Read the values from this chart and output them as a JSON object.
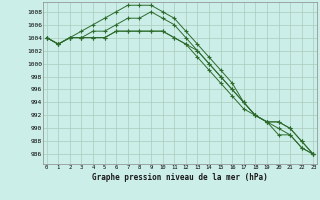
{
  "title": "Graphe pression niveau de la mer (hPa)",
  "bg_color": "#cceee8",
  "grid_color": "#aaccbb",
  "line_color": "#2d6b2d",
  "x_labels": [
    "0",
    "1",
    "2",
    "3",
    "4",
    "5",
    "6",
    "7",
    "8",
    "9",
    "10",
    "11",
    "12",
    "13",
    "14",
    "15",
    "16",
    "17",
    "18",
    "19",
    "20",
    "21",
    "22",
    "23"
  ],
  "y_ticks": [
    986,
    988,
    990,
    992,
    994,
    996,
    998,
    1000,
    1002,
    1004,
    1006,
    1008
  ],
  "ylim": [
    984.5,
    1009.5
  ],
  "xlim": [
    -0.3,
    23.3
  ],
  "series": [
    [
      1004,
      1003,
      1004,
      1005,
      1006,
      1007,
      1008,
      1009,
      1009,
      1009,
      1008,
      1007,
      1005,
      1003,
      1001,
      999,
      997,
      994,
      992,
      991,
      989,
      989,
      987,
      986
    ],
    [
      1004,
      1003,
      1004,
      1004,
      1005,
      1005,
      1006,
      1007,
      1007,
      1008,
      1007,
      1006,
      1004,
      1002,
      1000,
      998,
      996,
      994,
      992,
      991,
      990,
      989,
      987,
      986
    ],
    [
      1004,
      1003,
      1004,
      1004,
      1004,
      1004,
      1005,
      1005,
      1005,
      1005,
      1005,
      1004,
      1003,
      1002,
      1000,
      998,
      996,
      994,
      992,
      991,
      991,
      990,
      988,
      986
    ],
    [
      1004,
      1003,
      1004,
      1004,
      1004,
      1004,
      1005,
      1005,
      1005,
      1005,
      1005,
      1004,
      1003,
      1001,
      999,
      997,
      995,
      993,
      992,
      991,
      991,
      990,
      988,
      986
    ]
  ]
}
